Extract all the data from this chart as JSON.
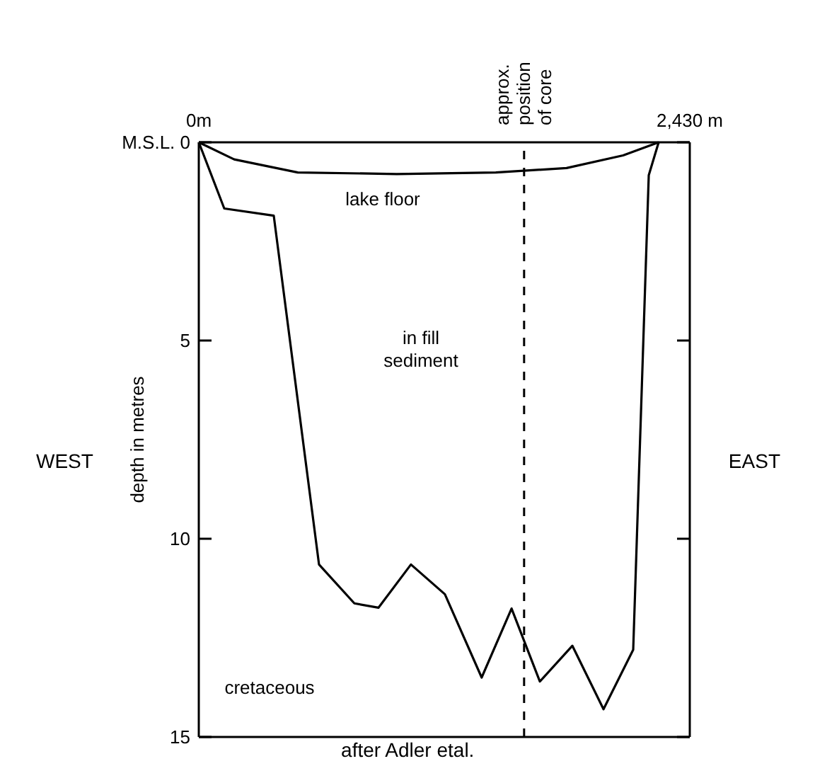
{
  "chart_data": {
    "type": "line",
    "ylabel": "depth in metres",
    "xlim": [
      0,
      2430
    ],
    "xticks": [
      {
        "value": 0,
        "label": "0m"
      },
      {
        "value": 2430,
        "label": "2,430 m"
      }
    ],
    "ylim": [
      15,
      0
    ],
    "yticks": [
      {
        "value": 0,
        "label": "M.S.L. 0"
      },
      5,
      10,
      15
    ],
    "series": [
      {
        "color": "#000000",
        "x": [
          0,
          175,
          490,
          980,
          1470,
          1820,
          2100,
          2276
        ],
        "values": [
          0,
          0.43,
          0.76,
          0.8,
          0.76,
          0.65,
          0.33,
          0
        ]
      },
      {
        "color": "#000000",
        "x": [
          0,
          126,
          371,
          595,
          770,
          889,
          1050,
          1218,
          1400,
          1548,
          1688,
          1849,
          2003,
          2150,
          2227,
          2276
        ],
        "values": [
          0,
          1.67,
          1.85,
          10.65,
          11.63,
          11.74,
          10.65,
          11.4,
          13.5,
          11.76,
          13.6,
          12.7,
          14.3,
          12.8,
          0.83,
          0
        ]
      }
    ],
    "ref_lines": [
      {
        "axis": "x",
        "value": 1610,
        "label": "approx.\nposition\nof core",
        "line_style": "dashed",
        "color": "#000000"
      }
    ],
    "annotations": [
      "WEST",
      "EAST",
      "after Adler etal.",
      "lake floor",
      "in fill\nsediment",
      "cretaceous"
    ],
    "grid": false,
    "marker": "none",
    "line_style": "solid"
  }
}
